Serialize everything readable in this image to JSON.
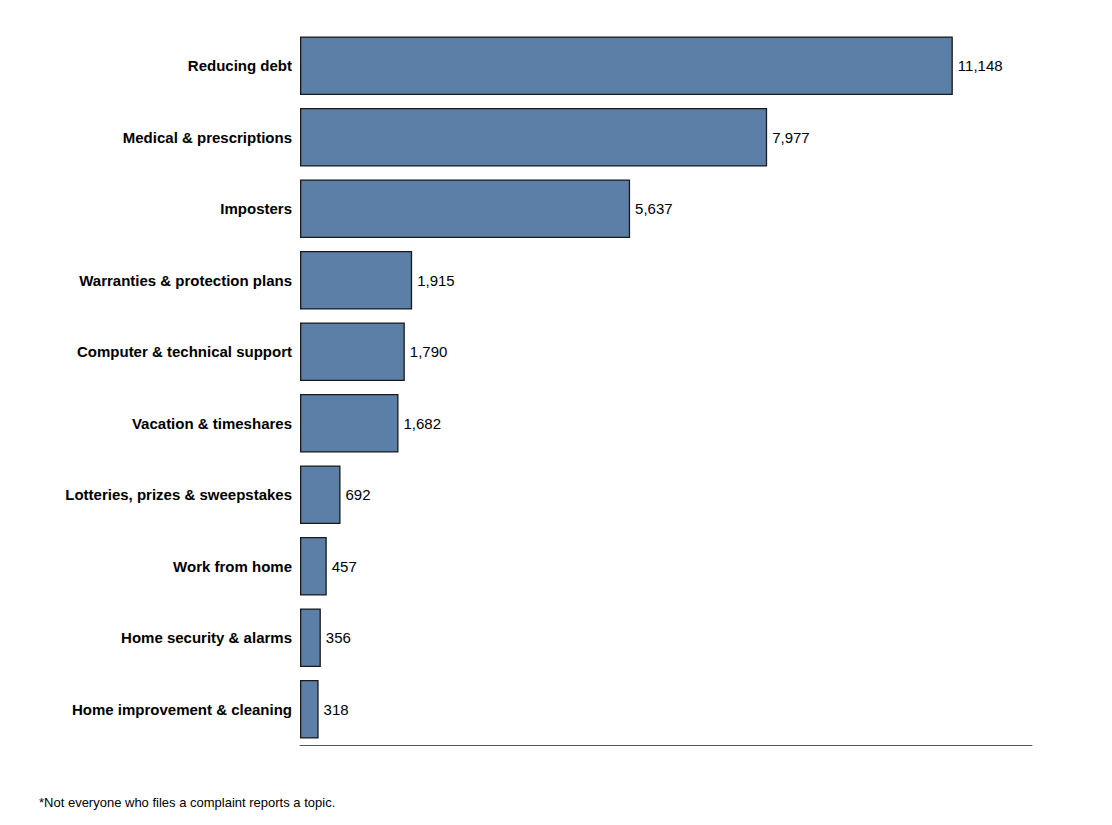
{
  "chart_data": {
    "type": "bar",
    "orientation": "horizontal",
    "categories": [
      "Reducing debt",
      "Medical & prescriptions",
      "Imposters",
      "Warranties & protection plans",
      "Computer & technical support",
      "Vacation & timeshares",
      "Lotteries, prizes & sweepstakes",
      "Work from home",
      "Home security & alarms",
      "Home improvement & cleaning"
    ],
    "values": [
      11148,
      7977,
      5637,
      1915,
      1790,
      1682,
      692,
      457,
      356,
      318
    ],
    "value_labels": [
      "11,148",
      "7,977",
      "5,637",
      "1,915",
      "1,790",
      "1,682",
      "692",
      "457",
      "356",
      "318"
    ],
    "data_labels": true,
    "color": "#5b7fa6",
    "xlim": [
      0,
      12500
    ],
    "xticks": [],
    "tick_labels": "y",
    "grid": false,
    "annotations": [
      "*Not everyone who files a complaint reports a topic."
    ]
  }
}
